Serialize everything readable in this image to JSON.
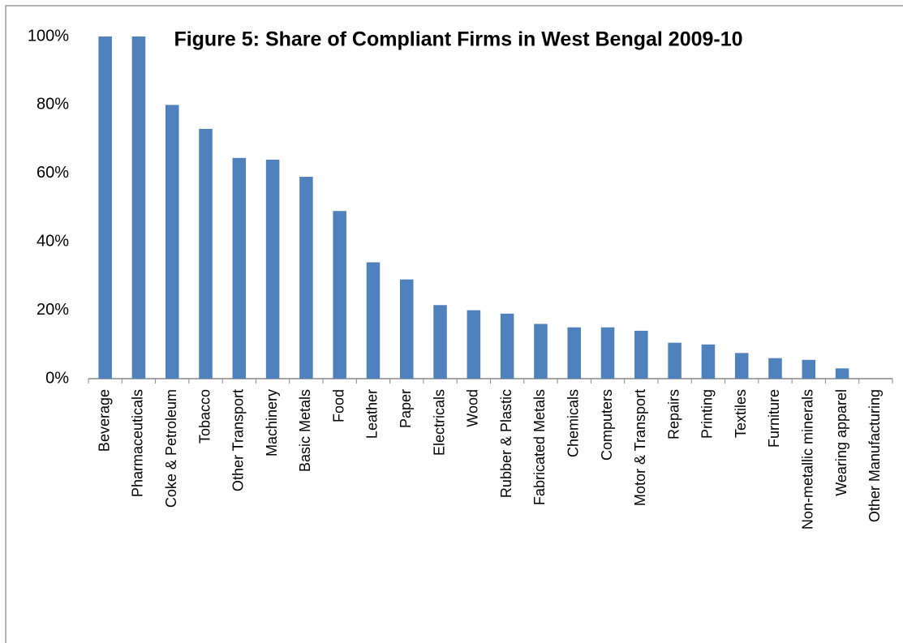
{
  "chart_data": {
    "type": "bar",
    "title": "Figure 5: Share of Compliant Firms in West Bengal 2009-10",
    "categories": [
      "Beverage",
      "Pharmaceuticals",
      "Coke & Petroleum",
      "Tobacco",
      "Other Transport",
      "Machinery",
      "Basic Metals",
      "Food",
      "Leather",
      "Paper",
      "Electricals",
      "Wood",
      "Rubber & Plastic",
      "Fabricated Metals",
      "Chemicals",
      "Computers",
      "Motor & Transport",
      "Repairs",
      "Printing",
      "Textiles",
      "Furniture",
      "Non-metallic minerals",
      "Wearing apparel",
      "Other Manufacturing"
    ],
    "values": [
      100,
      100,
      80,
      73,
      64.5,
      64,
      59,
      49,
      34,
      29,
      21.5,
      20,
      19,
      16,
      15,
      15,
      14,
      10.5,
      10,
      7.5,
      6,
      5.5,
      3,
      0
    ],
    "color": "#4f81bd",
    "ylim": [
      0,
      100
    ],
    "yticks": [
      {
        "value": 0,
        "label": "0%"
      },
      {
        "value": 20,
        "label": "20%"
      },
      {
        "value": 40,
        "label": "40%"
      },
      {
        "value": 60,
        "label": "60%"
      },
      {
        "value": 80,
        "label": "80%"
      },
      {
        "value": 100,
        "label": "100%"
      }
    ],
    "grid": false
  }
}
